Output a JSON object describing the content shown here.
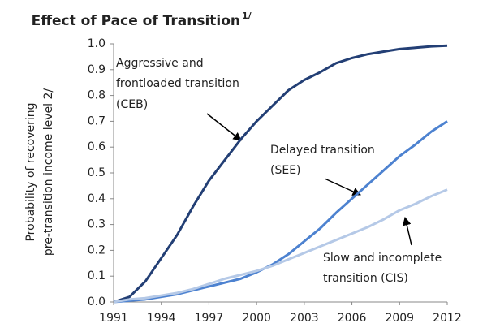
{
  "chart_data": {
    "type": "line",
    "title": "Effect of Pace of Transition",
    "title_note": "1/",
    "ylabel": [
      "Probability of recovering",
      "pre-transition income level 2/"
    ],
    "x": [
      1991,
      1992,
      1993,
      1994,
      1995,
      1996,
      1997,
      1998,
      1999,
      2000,
      2001,
      2002,
      2003,
      2004,
      2005,
      2006,
      2007,
      2008,
      2009,
      2010,
      2011,
      2012
    ],
    "xlim": [
      1991,
      2012
    ],
    "xticks": [
      1991,
      1994,
      1997,
      2000,
      2003,
      2006,
      2009,
      2012
    ],
    "ylim": [
      0,
      1
    ],
    "yticks": [
      {
        "value": 0,
        "label": "0.0"
      },
      0.1,
      0.2,
      0.3,
      0.4,
      0.5,
      0.6,
      0.7,
      0.8,
      0.9,
      {
        "value": 1,
        "label": "1.0"
      }
    ],
    "series": [
      {
        "name": "CEB",
        "color": "#233f75",
        "values": [
          0,
          0.02,
          0.08,
          0.17,
          0.26,
          0.37,
          0.47,
          0.55,
          0.63,
          0.7,
          0.76,
          0.82,
          0.86,
          0.89,
          0.925,
          0.945,
          0.96,
          0.97,
          0.98,
          0.985,
          0.99,
          0.993
        ]
      },
      {
        "name": "SEE",
        "color": "#4d82d0",
        "values": [
          0,
          0.005,
          0.01,
          0.02,
          0.03,
          0.045,
          0.06,
          0.075,
          0.09,
          0.115,
          0.145,
          0.185,
          0.235,
          0.285,
          0.345,
          0.4,
          0.455,
          0.51,
          0.565,
          0.61,
          0.66,
          0.7
        ]
      },
      {
        "name": "CIS",
        "color": "#b5c9e7",
        "values": [
          0,
          0.01,
          0.015,
          0.025,
          0.035,
          0.05,
          0.07,
          0.09,
          0.105,
          0.12,
          0.14,
          0.165,
          0.19,
          0.215,
          0.24,
          0.265,
          0.29,
          0.32,
          0.355,
          0.38,
          0.41,
          0.435
        ]
      }
    ],
    "annotations": [
      [
        "Aggressive and",
        "frontloaded transition",
        "(CEB)"
      ],
      [
        "Delayed transition",
        "(SEE)"
      ],
      [
        "Slow and incomplete",
        "transition (CIS)"
      ]
    ]
  }
}
